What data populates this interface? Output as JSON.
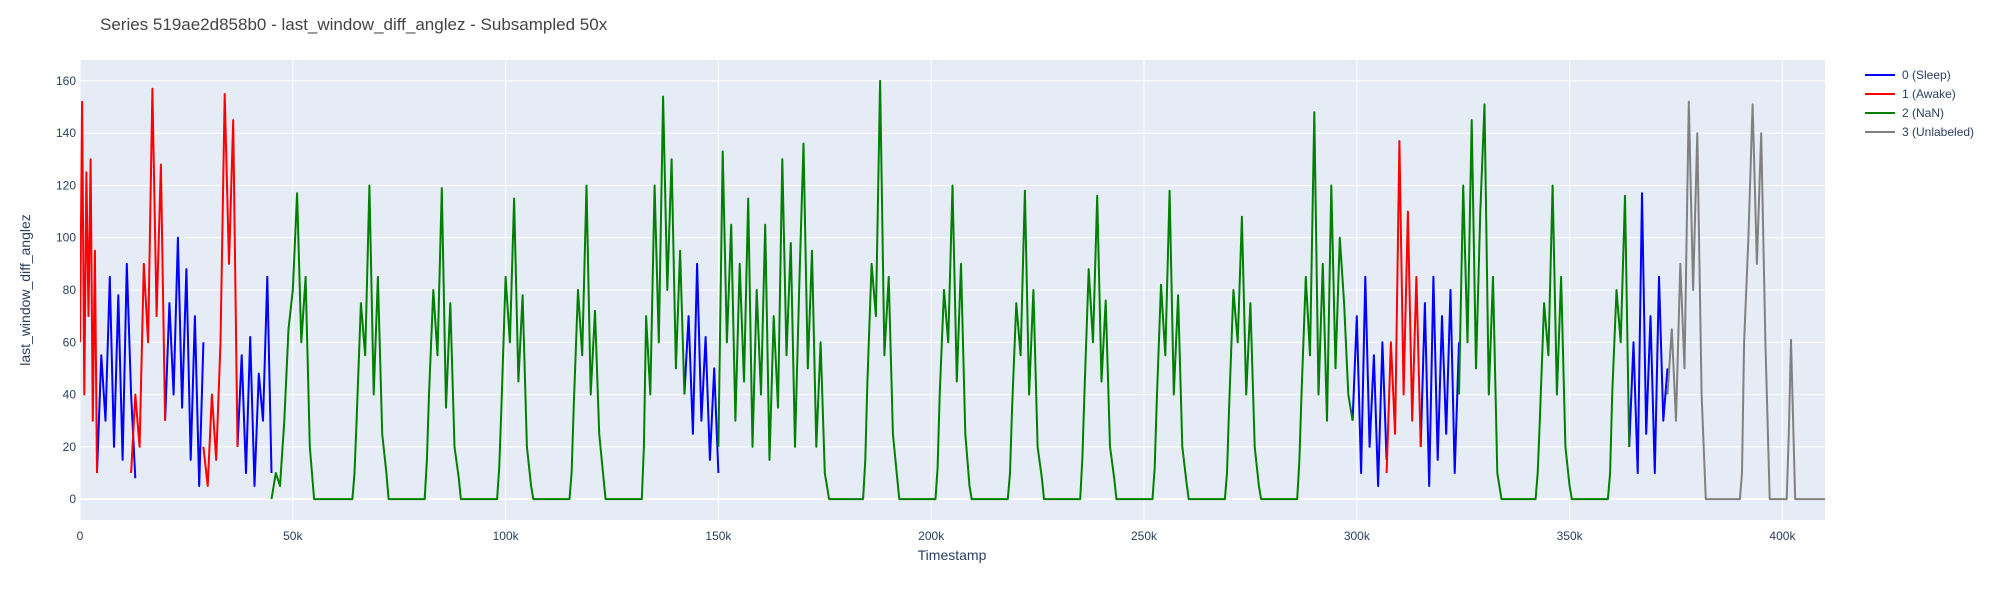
{
  "chart_data": {
    "type": "line",
    "title": "Series 519ae2d858b0 - last_window_diff_anglez - Subsampled 50x",
    "xlabel": "Timestamp",
    "ylabel": "last_window_diff_anglez",
    "xlim": [
      0,
      410000
    ],
    "ylim": [
      -8,
      168
    ],
    "x_ticks": [
      0,
      50000,
      100000,
      150000,
      200000,
      250000,
      300000,
      350000,
      400000
    ],
    "x_tick_labels": [
      "0",
      "50k",
      "100k",
      "150k",
      "200k",
      "250k",
      "300k",
      "350k",
      "400k"
    ],
    "y_ticks": [
      0,
      20,
      40,
      60,
      80,
      100,
      120,
      140,
      160
    ],
    "y_tick_labels": [
      "0",
      "20",
      "40",
      "60",
      "80",
      "100",
      "120",
      "140",
      "160"
    ],
    "grid": true,
    "legend_position": "top-right",
    "colors": {
      "plot_bg": "#e5ecf6",
      "grid": "#ffffff",
      "text": "#2a3f5f",
      "title": "#444444"
    },
    "series": [
      {
        "name": "0 (Sleep)",
        "color": "#0000ff",
        "segments": [
          {
            "x": [
              4000,
              5000,
              6000,
              7000,
              8000,
              9000,
              10000,
              11000,
              12000,
              13000
            ],
            "y": [
              10,
              55,
              30,
              85,
              20,
              78,
              15,
              90,
              40,
              8
            ]
          },
          {
            "x": [
              20000,
              21000,
              22000,
              23000,
              24000,
              25000,
              26000,
              27000,
              28000,
              29000
            ],
            "y": [
              30,
              75,
              40,
              100,
              35,
              88,
              15,
              70,
              5,
              60
            ]
          },
          {
            "x": [
              37000,
              38000,
              39000,
              40000,
              41000,
              42000,
              43000,
              44000,
              45000
            ],
            "y": [
              20,
              55,
              10,
              62,
              5,
              48,
              30,
              85,
              10
            ]
          },
          {
            "x": [
              142000,
              143000,
              144000,
              145000,
              146000,
              147000,
              148000,
              149000,
              150000
            ],
            "y": [
              40,
              70,
              25,
              90,
              30,
              62,
              15,
              50,
              10
            ]
          },
          {
            "x": [
              299000,
              300000,
              301000,
              302000,
              303000,
              304000,
              305000,
              306000,
              307000
            ],
            "y": [
              30,
              70,
              10,
              85,
              20,
              55,
              5,
              60,
              15
            ]
          },
          {
            "x": [
              315000,
              316000,
              317000,
              318000,
              319000,
              320000,
              321000,
              322000,
              323000,
              324000
            ],
            "y": [
              20,
              75,
              5,
              85,
              15,
              70,
              25,
              80,
              10,
              60
            ]
          },
          {
            "x": [
              364000,
              365000,
              366000,
              367000,
              368000,
              369000,
              370000,
              371000,
              372000,
              373000
            ],
            "y": [
              20,
              60,
              10,
              117,
              25,
              70,
              10,
              85,
              30,
              50
            ]
          }
        ]
      },
      {
        "name": "1 (Awake)",
        "color": "#ff0000",
        "segments": [
          {
            "x": [
              0,
              500,
              1000,
              1500,
              2000,
              2500,
              3000,
              3500,
              4000
            ],
            "y": [
              60,
              152,
              40,
              125,
              70,
              130,
              30,
              95,
              10
            ]
          },
          {
            "x": [
              12000,
              13000,
              14000,
              15000,
              16000,
              17000,
              18000,
              19000,
              20000
            ],
            "y": [
              10,
              40,
              20,
              90,
              60,
              157,
              70,
              128,
              30
            ]
          },
          {
            "x": [
              29000,
              30000,
              31000,
              32000,
              33000,
              34000,
              35000,
              36000,
              37000
            ],
            "y": [
              20,
              5,
              40,
              15,
              60,
              155,
              90,
              145,
              20
            ]
          },
          {
            "x": [
              307000,
              308000,
              309000,
              310000,
              311000,
              312000,
              313000,
              314000,
              315000
            ],
            "y": [
              10,
              60,
              25,
              137,
              40,
              110,
              30,
              85,
              20
            ]
          }
        ]
      },
      {
        "name": "2 (NaN)",
        "color": "#008000",
        "segments": [
          {
            "x": [
              45000,
              46000,
              47000,
              48000,
              49000,
              50000,
              51000,
              52000,
              53000,
              54000,
              55000,
              56000,
              60000,
              64000,
              64500,
              65000,
              66000,
              67000,
              68000,
              69000,
              70000,
              71000,
              72000,
              72500,
              73000,
              77000,
              81000,
              81500,
              82000,
              83000,
              84000,
              85000,
              86000,
              87000,
              88000,
              89000,
              89500,
              90000,
              94000,
              98000,
              98500,
              99000,
              100000,
              101000,
              102000,
              103000,
              104000,
              105000,
              106000,
              106500,
              107000,
              111000,
              115000,
              115500,
              116000,
              117000,
              118000,
              119000,
              120000,
              121000,
              122000,
              123000,
              123500,
              124000,
              128000,
              132000,
              132500,
              133000,
              134000,
              135000,
              136000,
              137000,
              138000,
              139000,
              140000,
              141000,
              142000
            ],
            "y": [
              0,
              10,
              5,
              30,
              65,
              80,
              117,
              60,
              85,
              20,
              0,
              0,
              0,
              0,
              10,
              30,
              75,
              55,
              120,
              40,
              85,
              25,
              10,
              0,
              0,
              0,
              0,
              15,
              40,
              80,
              55,
              119,
              35,
              75,
              20,
              8,
              0,
              0,
              0,
              0,
              12,
              35,
              85,
              60,
              115,
              45,
              78,
              20,
              5,
              0,
              0,
              0,
              0,
              10,
              35,
              80,
              55,
              120,
              40,
              72,
              25,
              8,
              0,
              0,
              0,
              0,
              20,
              70,
              40,
              120,
              60,
              154,
              80,
              130,
              50,
              95,
              40
            ]
          },
          {
            "x": [
              150000,
              151000,
              152000,
              153000,
              154000,
              155000,
              156000,
              157000,
              158000,
              159000,
              160000,
              161000,
              162000,
              163000,
              164000,
              165000,
              166000,
              167000,
              168000,
              169000,
              170000,
              171000,
              172000,
              173000,
              174000,
              175000,
              176000,
              180000,
              184000,
              184500,
              185000,
              186000,
              187000,
              188000,
              189000,
              190000,
              191000,
              192000,
              192500,
              193000,
              197000,
              201000,
              201500,
              202000,
              203000,
              204000,
              205000,
              206000,
              207000,
              208000,
              209000,
              209500,
              210000,
              214000,
              218000,
              218500,
              219000,
              220000,
              221000,
              222000,
              223000,
              224000,
              225000,
              226000,
              226500,
              227000,
              231000,
              235000,
              235500,
              236000,
              237000,
              238000,
              239000,
              240000,
              241000,
              242000,
              243000,
              243500,
              244000,
              248000,
              252000,
              252500,
              253000,
              254000,
              255000,
              256000,
              257000,
              258000,
              259000,
              260000,
              260500,
              261000,
              265000,
              269000,
              269500,
              270000,
              271000,
              272000,
              273000,
              274000,
              275000,
              276000,
              277000,
              277500,
              278000,
              282000,
              286000,
              286500,
              287000,
              288000,
              289000,
              290000,
              291000,
              292000,
              293000,
              294000,
              295000,
              296000,
              297000,
              298000,
              299000
            ],
            "y": [
              20,
              133,
              60,
              105,
              30,
              90,
              45,
              115,
              20,
              80,
              40,
              105,
              15,
              70,
              35,
              130,
              55,
              98,
              20,
              82,
              136,
              50,
              95,
              20,
              60,
              10,
              0,
              0,
              0,
              15,
              45,
              90,
              70,
              160,
              55,
              85,
              25,
              8,
              0,
              0,
              0,
              0,
              12,
              40,
              80,
              60,
              120,
              45,
              90,
              25,
              5,
              0,
              0,
              0,
              0,
              10,
              35,
              75,
              55,
              118,
              40,
              80,
              20,
              8,
              0,
              0,
              0,
              0,
              15,
              40,
              88,
              60,
              116,
              45,
              76,
              20,
              8,
              0,
              0,
              0,
              0,
              12,
              38,
              82,
              55,
              118,
              40,
              78,
              20,
              6,
              0,
              0,
              0,
              0,
              10,
              35,
              80,
              60,
              108,
              40,
              75,
              20,
              5,
              0,
              0,
              0,
              0,
              15,
              40,
              85,
              55,
              148,
              40,
              90,
              30,
              120,
              50,
              100,
              75,
              40,
              30
            ]
          },
          {
            "x": [
              324000,
              325000,
              326000,
              327000,
              328000,
              329000,
              330000,
              331000,
              332000,
              333000,
              334000,
              338000,
              342000,
              342500,
              343000,
              344000,
              345000,
              346000,
              347000,
              348000,
              349000,
              350000,
              350500,
              351000,
              355000,
              359000,
              359500,
              360000,
              361000,
              362000,
              363000,
              364000
            ],
            "y": [
              40,
              120,
              60,
              145,
              50,
              110,
              151,
              40,
              85,
              10,
              0,
              0,
              0,
              10,
              30,
              75,
              55,
              120,
              40,
              85,
              20,
              5,
              0,
              0,
              0,
              0,
              10,
              40,
              80,
              60,
              116,
              20
            ]
          }
        ]
      },
      {
        "name": "3 (Unlabeled)",
        "color": "#808080",
        "segments": [
          {
            "x": [
              373000,
              374000,
              375000,
              376000,
              377000,
              378000,
              379000,
              380000,
              381000,
              382000,
              386000,
              390000,
              390500,
              391000,
              392000,
              393000,
              394000,
              395000,
              396000,
              397000,
              401000,
              401500,
              402000,
              402500,
              403000,
              407000,
              410000
            ],
            "y": [
              40,
              65,
              30,
              90,
              50,
              152,
              80,
              140,
              40,
              0,
              0,
              0,
              10,
              60,
              100,
              151,
              90,
              140,
              60,
              0,
              0,
              25,
              61,
              30,
              0,
              0,
              0
            ]
          }
        ]
      }
    ]
  }
}
